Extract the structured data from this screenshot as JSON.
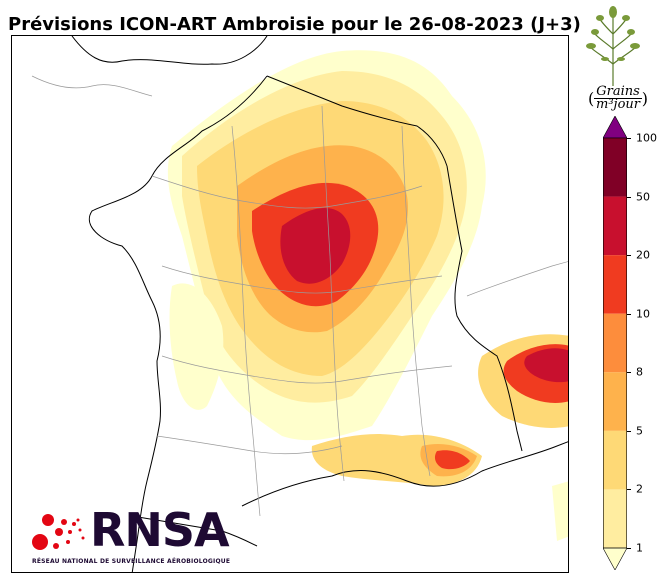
{
  "title": "Prévisions ICON-ART Ambroisie pour le 26-08-2023 (J+3)",
  "unit": {
    "numerator": "Grains",
    "denominator": "m³jour",
    "open": "(",
    "close": ")"
  },
  "colorbar": {
    "labels": [
      "1",
      "2",
      "5",
      "8",
      "10",
      "20",
      "50",
      "100"
    ],
    "colors": [
      "#ffffcc",
      "#ffeda0",
      "#fed976",
      "#feb24c",
      "#fd8d3c",
      "#f03b20",
      "#c8102e",
      "#800026"
    ],
    "extend_over_color": "#800080"
  },
  "logo": {
    "name": "RNSA",
    "subtitle": "RÉSEAU NATIONAL DE SURVEILLANCE AÉROBIOLOGIQUE",
    "brand_color": "#1e0a33",
    "dot_color": "#e30613"
  },
  "map": {
    "region": "France",
    "overlay": "ragweed pollen forecast"
  }
}
